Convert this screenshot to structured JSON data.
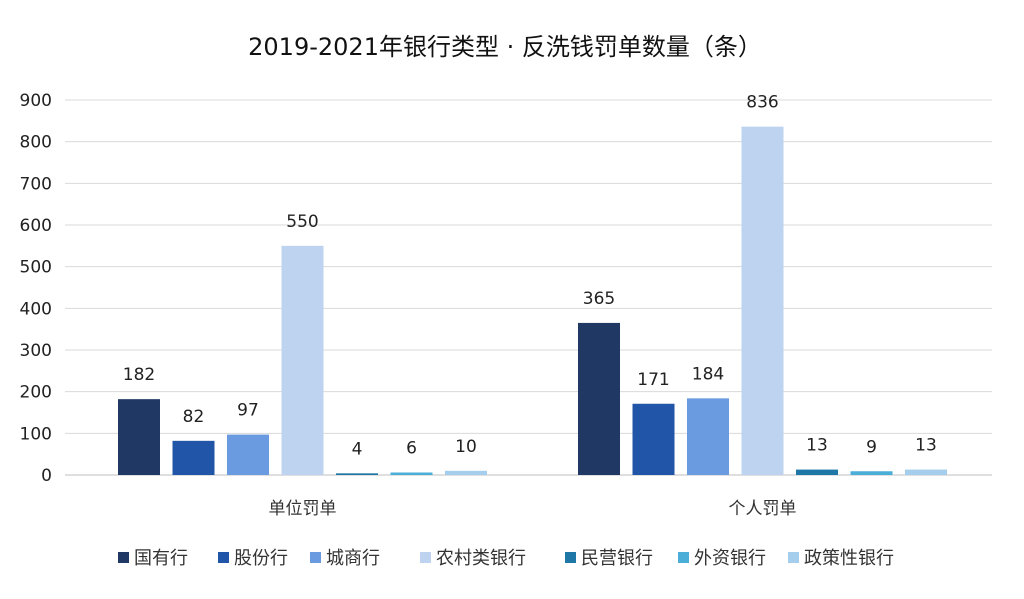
{
  "chart_data": {
    "type": "bar",
    "title": "2019-2021年银行类型 · 反洗钱罚单数量（条）",
    "xlabel": "",
    "ylabel": "",
    "ylim": [
      0,
      900
    ],
    "yticks": [
      0,
      100,
      200,
      300,
      400,
      500,
      600,
      700,
      800,
      900
    ],
    "grid": true,
    "legend_position": "bottom",
    "categories": [
      "单位罚单",
      "个人罚单"
    ],
    "series": [
      {
        "name": "国有行",
        "color": "#1f3864",
        "values": [
          182,
          365
        ]
      },
      {
        "name": "股份行",
        "color": "#2155a8",
        "values": [
          82,
          171
        ]
      },
      {
        "name": "城商行",
        "color": "#6a9ae0",
        "values": [
          97,
          184
        ]
      },
      {
        "name": "农村类银行",
        "color": "#bdd3ef",
        "values": [
          550,
          836
        ]
      },
      {
        "name": "民营银行",
        "color": "#1f77a8",
        "values": [
          4,
          13
        ]
      },
      {
        "name": "外资银行",
        "color": "#4aaed8",
        "values": [
          6,
          9
        ]
      },
      {
        "name": "政策性银行",
        "color": "#a5cdec",
        "values": [
          10,
          13
        ]
      }
    ]
  }
}
